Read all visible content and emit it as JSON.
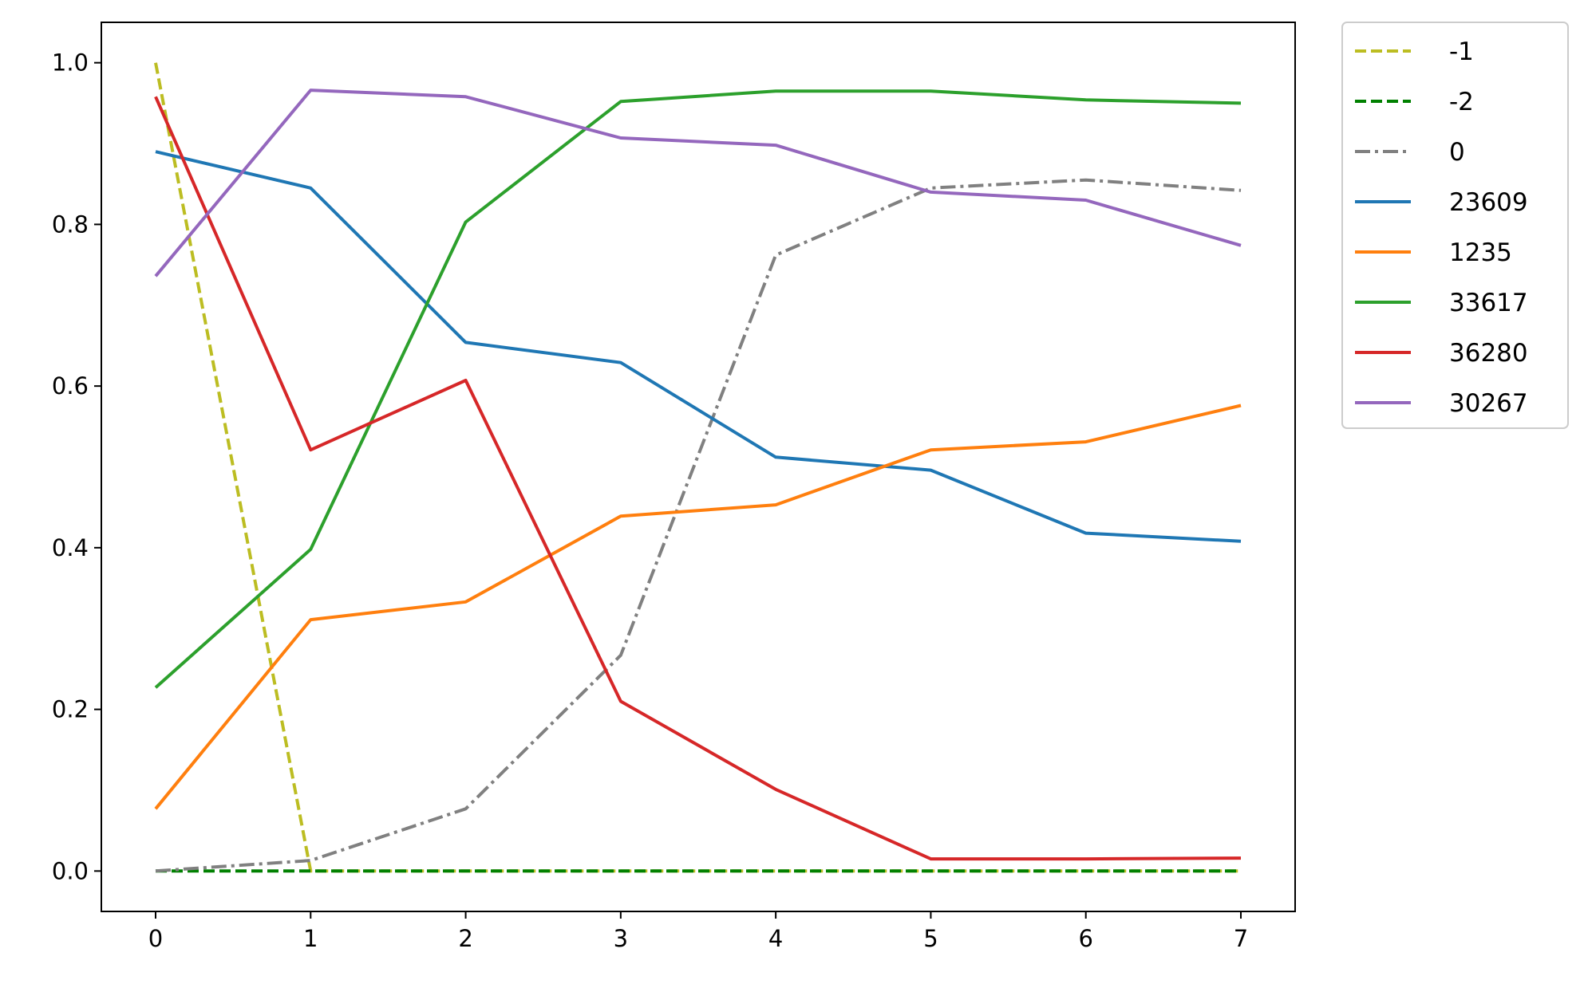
{
  "chart_data": {
    "type": "line",
    "title": "",
    "xlabel": "",
    "ylabel": "",
    "x": [
      0,
      1,
      2,
      3,
      4,
      5,
      6,
      7
    ],
    "xlim": [
      -0.35,
      7.35
    ],
    "ylim": [
      -0.05,
      1.05
    ],
    "x_ticks": [
      0,
      1,
      2,
      3,
      4,
      5,
      6,
      7
    ],
    "x_tick_labels": [
      "0",
      "1",
      "2",
      "3",
      "4",
      "5",
      "6",
      "7"
    ],
    "y_ticks": [
      0.0,
      0.2,
      0.4,
      0.6,
      0.8,
      1.0
    ],
    "y_tick_labels": [
      "0.0",
      "0.2",
      "0.4",
      "0.6",
      "0.8",
      "1.0"
    ],
    "grid": false,
    "legend_position": "outside-top-right",
    "series": [
      {
        "name": "-1",
        "color": "#bcbd22",
        "dash": "dashed",
        "values": [
          1.0,
          0.0,
          0.0,
          0.0,
          0.0,
          0.0,
          0.0,
          0.0
        ]
      },
      {
        "name": "-2",
        "color": "#008000",
        "dash": "dashed",
        "values": [
          0.0,
          0.0,
          0.0,
          0.0,
          0.0,
          0.0,
          0.0,
          0.0
        ]
      },
      {
        "name": "0",
        "color": "#808080",
        "dash": "dashdot",
        "values": [
          0.0,
          0.013,
          0.077,
          0.267,
          0.762,
          0.845,
          0.855,
          0.842
        ]
      },
      {
        "name": "23609",
        "color": "#1f77b4",
        "dash": "solid",
        "values": [
          0.89,
          0.845,
          0.654,
          0.629,
          0.512,
          0.496,
          0.418,
          0.408
        ]
      },
      {
        "name": "1235",
        "color": "#ff7f0e",
        "dash": "solid",
        "values": [
          0.077,
          0.311,
          0.333,
          0.439,
          0.453,
          0.521,
          0.531,
          0.576
        ]
      },
      {
        "name": "33617",
        "color": "#2ca02c",
        "dash": "solid",
        "values": [
          0.227,
          0.398,
          0.803,
          0.952,
          0.965,
          0.965,
          0.954,
          0.95
        ]
      },
      {
        "name": "36280",
        "color": "#d62728",
        "dash": "solid",
        "values": [
          0.958,
          0.521,
          0.607,
          0.21,
          0.101,
          0.015,
          0.015,
          0.016
        ]
      },
      {
        "name": "30267",
        "color": "#9467bd",
        "dash": "solid",
        "values": [
          0.736,
          0.966,
          0.958,
          0.907,
          0.898,
          0.84,
          0.83,
          0.774
        ]
      }
    ]
  }
}
